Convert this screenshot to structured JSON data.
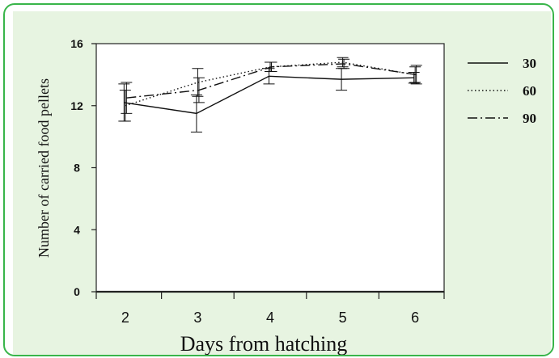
{
  "chart_data": {
    "type": "line",
    "title": "",
    "xlabel": "Days from hatching",
    "ylabel": "Number of carried food pellets",
    "x": [
      2,
      3,
      4,
      5,
      6
    ],
    "xlim": [
      1.6,
      6.4
    ],
    "ylim": [
      0,
      16
    ],
    "yticks": [
      0,
      4,
      8,
      12,
      16
    ],
    "grid": false,
    "legend_position": "right",
    "series": [
      {
        "name": "30",
        "style": "solid",
        "values": [
          12.2,
          11.5,
          13.9,
          13.7,
          13.8
        ],
        "error": [
          1.2,
          1.2,
          0.5,
          0.7,
          0.35
        ]
      },
      {
        "name": "60",
        "style": "dotted",
        "values": [
          12.0,
          13.5,
          14.5,
          14.8,
          14.0
        ],
        "error": [
          1.0,
          0.9,
          0.3,
          0.3,
          0.5
        ]
      },
      {
        "name": "90",
        "style": "dashdot",
        "values": [
          12.5,
          13.0,
          14.5,
          14.7,
          14.0
        ],
        "error": [
          1.0,
          0.8,
          0.3,
          0.3,
          0.6
        ]
      }
    ]
  }
}
